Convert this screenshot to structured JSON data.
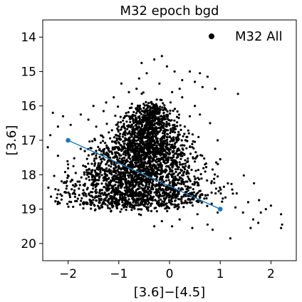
{
  "chart_data": {
    "type": "scatter",
    "title": "M32 epoch bgd",
    "xlabel": "[3.6]−[4.5]",
    "ylabel": "[3.6]",
    "xlim": [
      -2.5,
      2.5
    ],
    "ylim": [
      20.5,
      13.5
    ],
    "y_inverted": true,
    "x_ticks": [
      -2,
      -1,
      0,
      1,
      2
    ],
    "x_tick_labels": [
      "−2",
      "−1",
      "0",
      "1",
      "2"
    ],
    "y_ticks": [
      14,
      15,
      16,
      17,
      18,
      19,
      20
    ],
    "y_tick_labels": [
      "14",
      "15",
      "16",
      "17",
      "18",
      "19",
      "20"
    ],
    "grid": false,
    "legend": {
      "placement": "top-right",
      "entries": [
        "M32 All"
      ]
    },
    "series": [
      {
        "name": "M32 All",
        "kind": "scatter",
        "color": "#000000",
        "approx_count": 3000,
        "points": [
          [
            -0.95,
            15.35
          ],
          [
            -0.6,
            15.2
          ],
          [
            -0.45,
            15.05
          ],
          [
            -0.15,
            14.55
          ],
          [
            -0.05,
            14.85
          ],
          [
            0.1,
            15.0
          ],
          [
            0.25,
            15.25
          ],
          [
            0.4,
            15.0
          ],
          [
            0.5,
            15.3
          ],
          [
            0.65,
            15.45
          ],
          [
            0.75,
            15.15
          ],
          [
            0.9,
            15.5
          ],
          [
            -0.8,
            15.6
          ],
          [
            -1.1,
            15.75
          ],
          [
            1.35,
            15.65
          ],
          [
            -0.55,
            14.75
          ],
          [
            -0.3,
            14.65
          ],
          [
            0.2,
            15.5
          ],
          [
            -0.65,
            15.5
          ],
          [
            0.6,
            15.05
          ],
          [
            -2.3,
            16.2
          ],
          [
            -2.1,
            16.3
          ],
          [
            -2.2,
            16.6
          ],
          [
            -2.35,
            16.85
          ],
          [
            -1.95,
            16.55
          ],
          [
            -1.75,
            16.25
          ],
          [
            -1.6,
            16.4
          ],
          [
            -1.5,
            16.0
          ],
          [
            -1.3,
            16.15
          ],
          [
            -1.25,
            15.9
          ],
          [
            -2.4,
            17.2
          ],
          [
            -2.2,
            17.45
          ],
          [
            -2.0,
            17.7
          ],
          [
            -1.85,
            17.95
          ],
          [
            -1.95,
            18.2
          ],
          [
            -1.7,
            18.45
          ],
          [
            -1.5,
            18.3
          ],
          [
            -1.45,
            18.75
          ],
          [
            -1.25,
            18.6
          ],
          [
            -1.15,
            19.05
          ],
          [
            -0.9,
            18.95
          ],
          [
            -0.6,
            19.15
          ],
          [
            -0.3,
            19.5
          ],
          [
            -0.15,
            19.35
          ],
          [
            0.05,
            19.5
          ],
          [
            0.2,
            19.3
          ],
          [
            0.45,
            19.55
          ],
          [
            0.55,
            19.15
          ],
          [
            0.75,
            19.45
          ],
          [
            0.85,
            19.6
          ],
          [
            0.95,
            19.1
          ],
          [
            1.2,
            19.85
          ],
          [
            1.3,
            18.95
          ],
          [
            1.45,
            19.1
          ],
          [
            1.55,
            18.8
          ],
          [
            1.65,
            19.3
          ],
          [
            1.75,
            19.4
          ],
          [
            1.8,
            19.1
          ],
          [
            1.9,
            19.0
          ],
          [
            2.0,
            18.9
          ],
          [
            2.2,
            19.15
          ],
          [
            2.22,
            19.45
          ],
          [
            2.2,
            19.55
          ],
          [
            1.6,
            19.55
          ],
          [
            1.25,
            18.55
          ],
          [
            1.15,
            18.25
          ],
          [
            0.95,
            18.05
          ],
          [
            0.85,
            17.85
          ],
          [
            0.7,
            17.7
          ],
          [
            0.55,
            17.45
          ],
          [
            0.45,
            17.2
          ],
          [
            0.35,
            16.9
          ],
          [
            0.3,
            16.6
          ],
          [
            0.6,
            16.25
          ],
          [
            0.5,
            16.0
          ],
          [
            0.8,
            16.5
          ],
          [
            0.95,
            17.0
          ],
          [
            1.0,
            17.55
          ],
          [
            0.4,
            16.3
          ],
          [
            -0.75,
            16.05
          ],
          [
            -0.9,
            16.35
          ],
          [
            -1.05,
            16.55
          ],
          [
            0.25,
            15.75
          ],
          [
            0.05,
            15.6
          ],
          [
            -0.2,
            15.35
          ]
        ]
      },
      {
        "name": "",
        "kind": "line",
        "color": "#1f77b4",
        "points": [
          [
            -2.0,
            17.0
          ],
          [
            1.0,
            19.0
          ]
        ]
      }
    ]
  }
}
